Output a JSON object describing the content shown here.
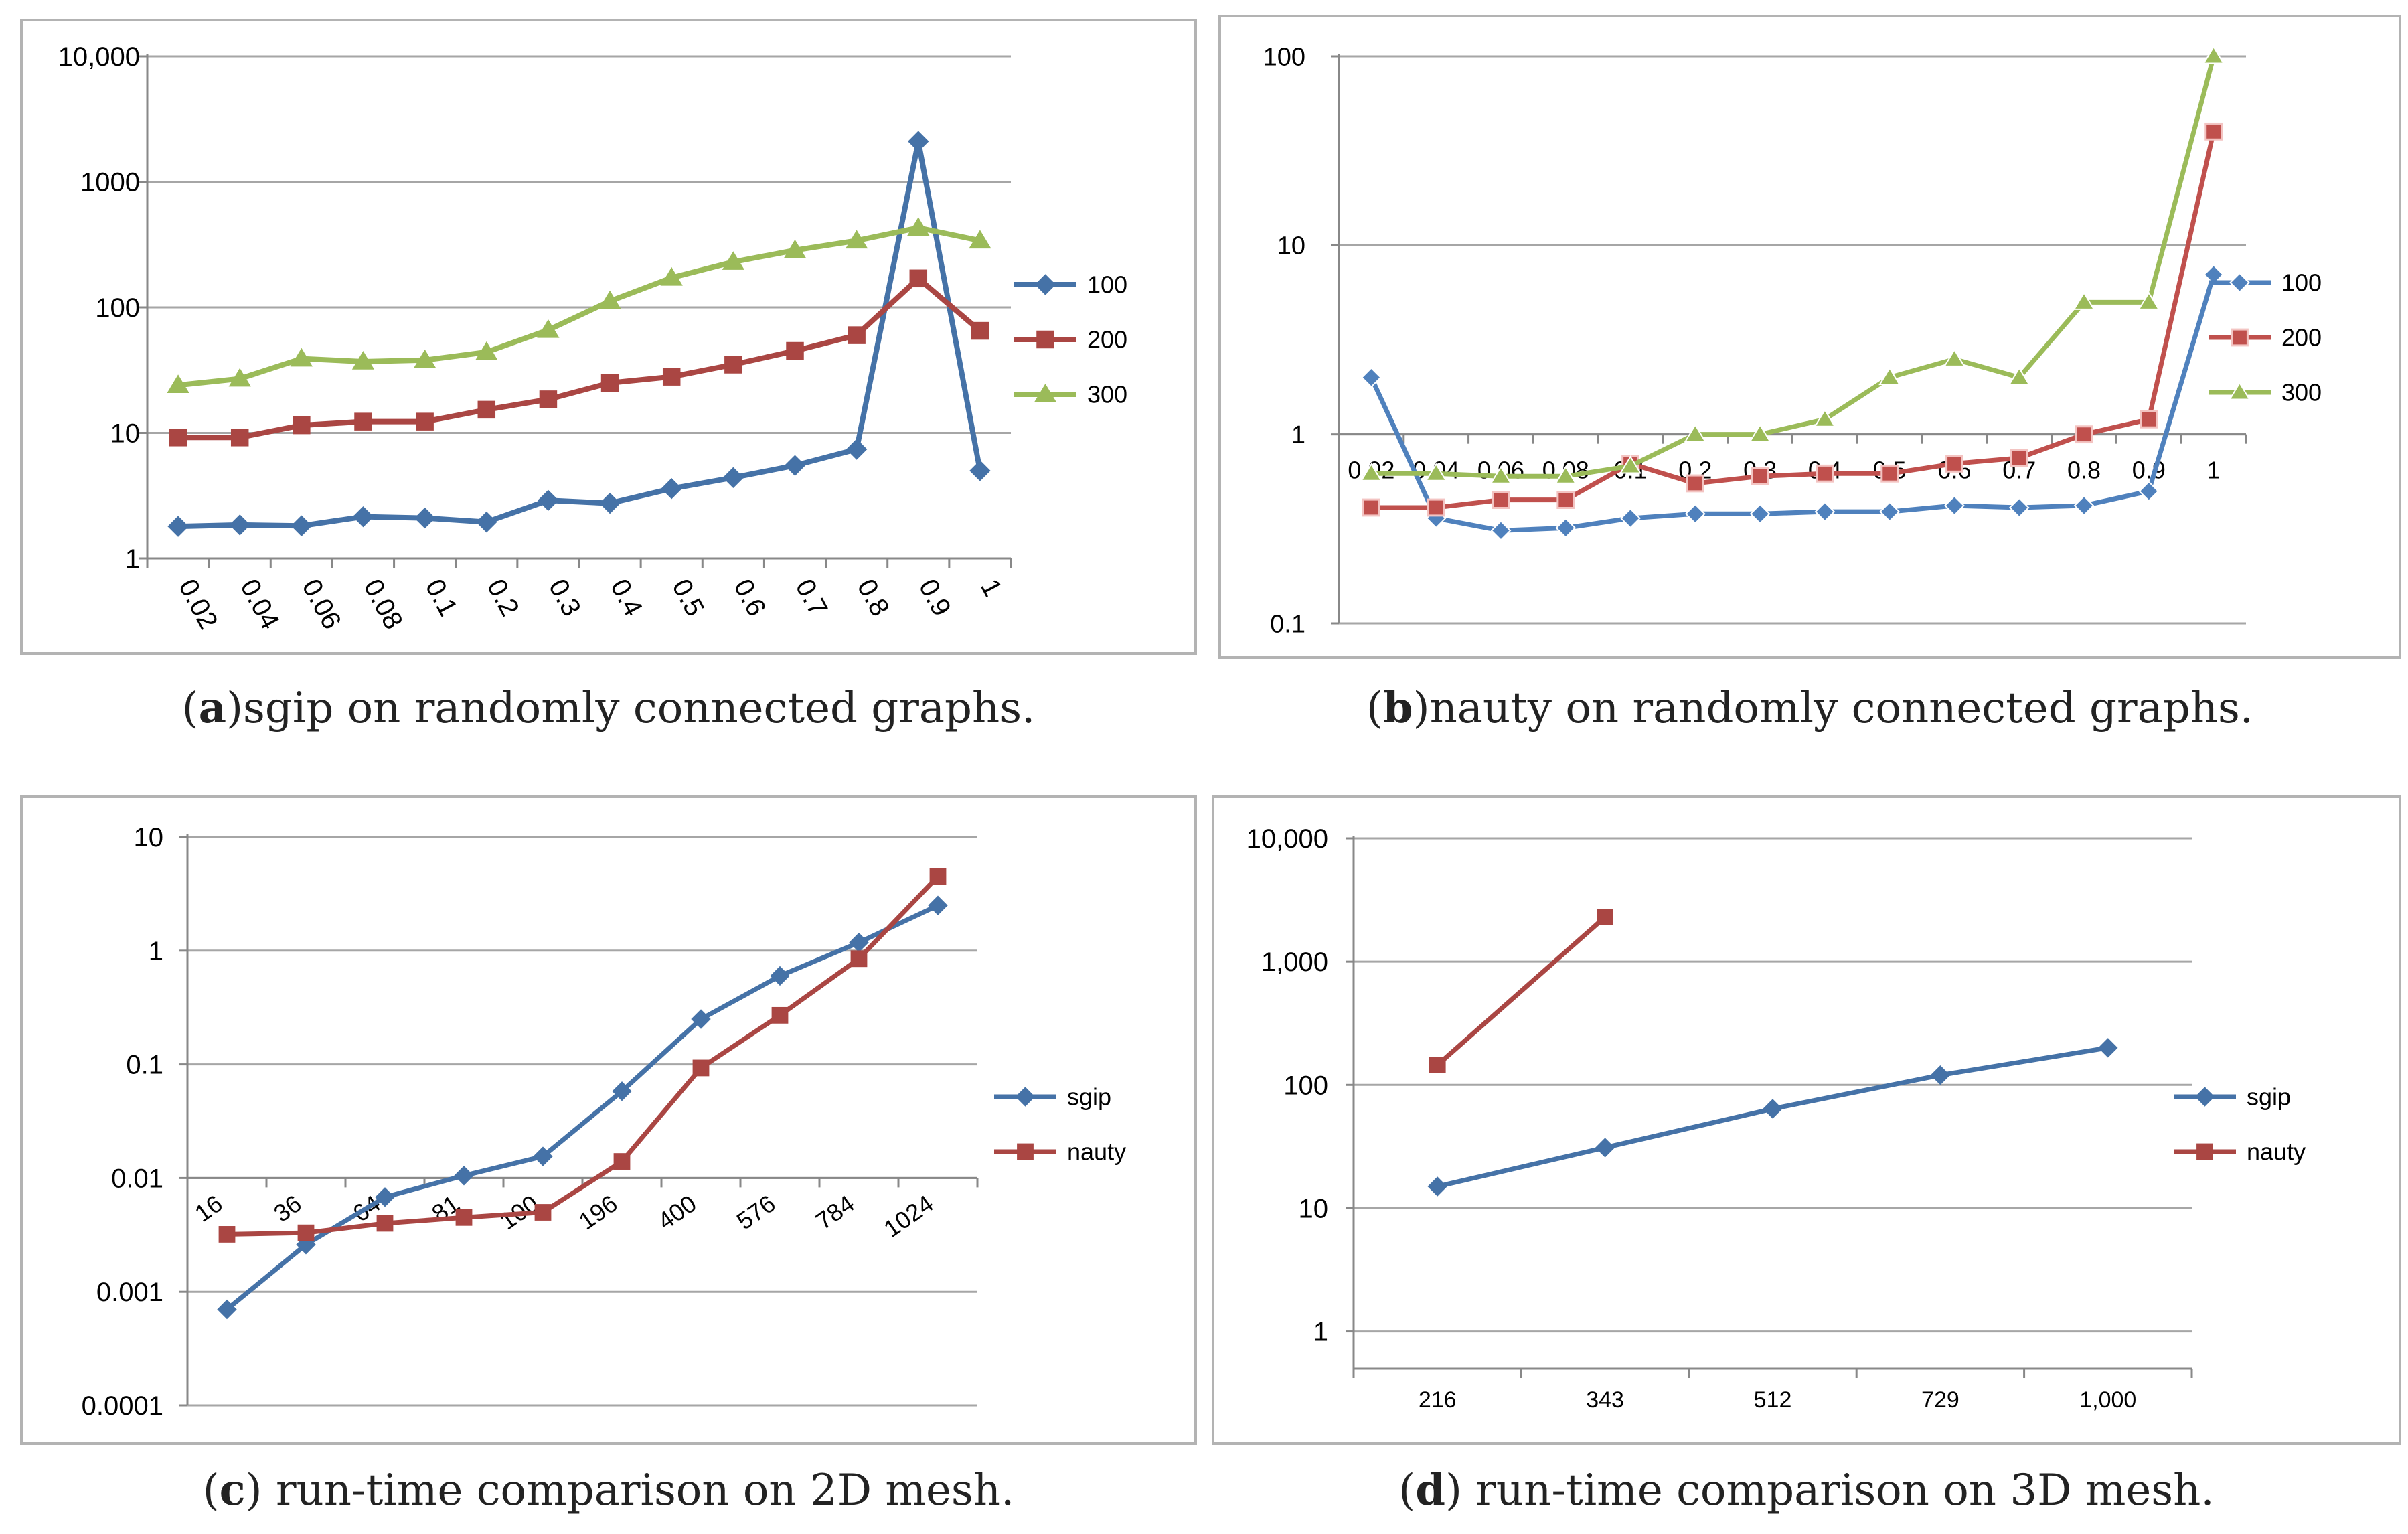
{
  "colors": {
    "blue": "#4572a7",
    "red": "#aa4643",
    "green": "#9bbb59",
    "light_blue": "#4f81bd",
    "light_red": "#c0504d",
    "light_green": "#9bbb59",
    "grid": "#a6a6a6"
  },
  "captions": {
    "a": {
      "letter": "a",
      "text": "sgip on randomly connected graphs."
    },
    "b": {
      "letter": "b",
      "text": "nauty on randomly connected graphs."
    },
    "c": {
      "letter": "c",
      "text": " run-time comparison on 2D mesh."
    },
    "d": {
      "letter": "d",
      "text": " run-time comparison on 3D mesh."
    }
  },
  "chart_data": [
    {
      "id": "a",
      "type": "line",
      "yscale": "log",
      "ylim": [
        1,
        10000
      ],
      "ytick_values": [
        1,
        10,
        100,
        1000,
        10000
      ],
      "ytick_labels": [
        "1",
        "10",
        "100",
        "1000",
        "10,000"
      ],
      "categories": [
        "0.02",
        "0.04",
        "0.06",
        "0.08",
        "0.1",
        "0.2",
        "0.3",
        "0.4",
        "0.5",
        "0.6",
        "0.7",
        "0.8",
        "0.9",
        "1"
      ],
      "series": [
        {
          "name": "100",
          "marker": "diamond",
          "color": "#4572a7",
          "values": [
            1.8,
            1.85,
            1.82,
            2.15,
            2.1,
            1.95,
            2.9,
            2.75,
            3.6,
            4.4,
            5.5,
            7.4,
            2100,
            5
          ]
        },
        {
          "name": "200",
          "marker": "square",
          "color": "#aa4643",
          "values": [
            9.2,
            9.2,
            11.5,
            12.3,
            12.3,
            15.3,
            18.5,
            25,
            28,
            35,
            45,
            60,
            170,
            65
          ]
        },
        {
          "name": "300",
          "marker": "triangle",
          "color": "#9bbb59",
          "values": [
            24,
            27,
            39,
            37,
            38,
            44,
            66,
            112,
            172,
            230,
            285,
            340,
            430,
            340
          ]
        }
      ],
      "legend": "right",
      "xlabel_rotation": "rotated",
      "xlabel": "",
      "ylabel": "",
      "title": ""
    },
    {
      "id": "b",
      "type": "line",
      "yscale": "log",
      "ylim": [
        0.1,
        100
      ],
      "ytick_values": [
        0.1,
        1,
        10,
        100
      ],
      "ytick_labels": [
        "0.1",
        "1",
        "10",
        "100"
      ],
      "categories": [
        "0.02",
        "0.04",
        "0.06",
        "0.08",
        "0.1",
        "0.2",
        "0.3",
        "0.4",
        "0.5",
        "0.6",
        "0.7",
        "0.8",
        "0.9",
        "1"
      ],
      "series": [
        {
          "name": "100",
          "marker": "diamond",
          "color": "#4f81bd",
          "values": [
            2,
            0.36,
            0.31,
            0.32,
            0.36,
            0.38,
            0.38,
            0.39,
            0.39,
            0.42,
            0.41,
            0.42,
            0.5,
            7
          ]
        },
        {
          "name": "200",
          "marker": "square",
          "color": "#c0504d",
          "values": [
            0.41,
            0.41,
            0.45,
            0.45,
            0.7,
            0.55,
            0.6,
            0.62,
            0.62,
            0.7,
            0.75,
            1,
            1.2,
            40
          ]
        },
        {
          "name": "300",
          "marker": "triangle",
          "color": "#9bbb59",
          "values": [
            0.62,
            0.62,
            0.6,
            0.6,
            0.68,
            1,
            1,
            1.2,
            2,
            2.5,
            2,
            5,
            5,
            100
          ]
        }
      ],
      "legend": "right",
      "category_axis_at": 1,
      "xlabel": "",
      "ylabel": "",
      "title": ""
    },
    {
      "id": "c",
      "type": "line",
      "yscale": "log",
      "ylim": [
        0.0001,
        10
      ],
      "ytick_values": [
        0.0001,
        0.001,
        0.01,
        0.1,
        1,
        10
      ],
      "ytick_labels": [
        "0.0001",
        "0.001",
        "0.01",
        "0.1",
        "1",
        "10"
      ],
      "categories": [
        "16",
        "36",
        "64",
        "81",
        "100",
        "196",
        "400",
        "576",
        "784",
        "1024"
      ],
      "series": [
        {
          "name": "sgip",
          "marker": "diamond",
          "color": "#4572a7",
          "values": [
            0.0007,
            0.0026,
            0.0068,
            0.0105,
            0.0155,
            0.058,
            0.25,
            0.6,
            1.18,
            2.5
          ]
        },
        {
          "name": "nauty",
          "marker": "square",
          "color": "#aa4643",
          "values": [
            0.0032,
            0.0033,
            0.004,
            0.0045,
            0.005,
            0.014,
            0.093,
            0.27,
            0.85,
            4.5
          ]
        }
      ],
      "legend": "right",
      "category_axis_at": 0.01,
      "xlabel": "",
      "ylabel": "",
      "title": ""
    },
    {
      "id": "d",
      "type": "line",
      "yscale": "log",
      "ylim": [
        0.5,
        10000
      ],
      "ytick_values": [
        1,
        10,
        100,
        1000,
        10000
      ],
      "ytick_labels": [
        "1",
        "10",
        "100",
        "1,000",
        "10,000"
      ],
      "categories": [
        "216",
        "343",
        "512",
        "729",
        "1,000"
      ],
      "series": [
        {
          "name": "sgip",
          "marker": "diamond",
          "color": "#4572a7",
          "values": [
            15,
            31,
            64,
            120,
            200
          ]
        },
        {
          "name": "nauty",
          "marker": "square",
          "color": "#aa4643",
          "values": [
            145,
            2300,
            null,
            null,
            null
          ]
        }
      ],
      "legend": "right",
      "xlabel": "",
      "ylabel": "",
      "title": ""
    }
  ]
}
